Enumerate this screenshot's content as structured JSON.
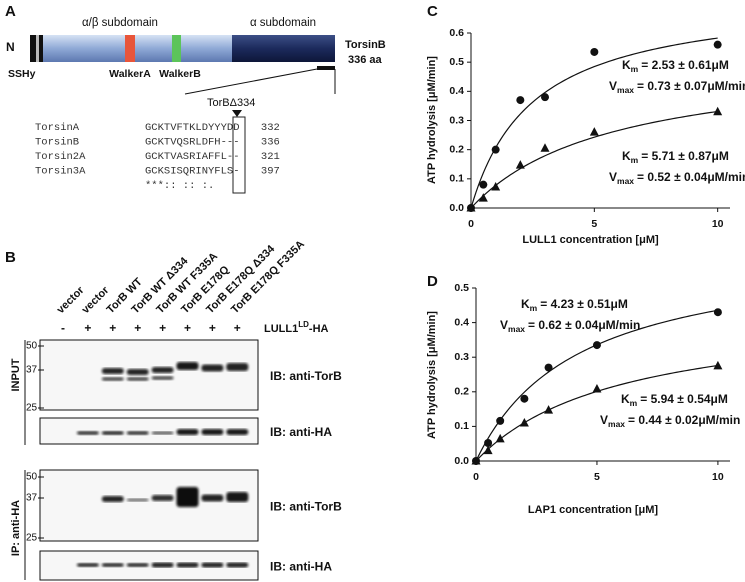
{
  "panel_a": {
    "label": "A",
    "n_label": "N",
    "ss_label": "SSHy",
    "alpha_beta": "α/β subdomain",
    "alpha": "α subdomain",
    "walker_a": "WalkerA",
    "walker_b": "WalkerB",
    "protein": "TorsinB",
    "length": "336 aa",
    "mutant": "TorBΔ334",
    "alignment": [
      {
        "name": "TorsinA",
        "sequence": "GCKTVFTKLDYYYDD",
        "end": 332
      },
      {
        "name": "TorsinB",
        "sequence": "GCKTVQSRLDFH---",
        "end": 336
      },
      {
        "name": "Torsin2A",
        "sequence": "GCKTVASRIAFFL--",
        "end": 321
      },
      {
        "name": "Torsin3A",
        "sequence": "GCKSISQRINYFLS-",
        "end": 397
      }
    ],
    "conservation": "***::  ::  :."
  },
  "panel_b": {
    "label": "B",
    "lanes": [
      "vector",
      "vector",
      "TorB WT",
      "TorB WT Δ334",
      "TorB WT F335A",
      "TorB E178Q",
      "TorB E178Q  Δ334",
      "TorB E178Q F335A"
    ],
    "signs": [
      "-",
      "+",
      "+",
      "+",
      "+",
      "+",
      "+",
      "+"
    ],
    "lull": {
      "text": "LULL1",
      "sup": "LD",
      "suffix": "-HA"
    },
    "input_label": "INPUT",
    "ip_label": "IP: anti-HA",
    "blots": [
      {
        "label": "IB: anti-TorB",
        "markers": [
          50,
          37,
          25
        ]
      },
      {
        "label": "IB: anti-HA"
      },
      {
        "label": "IB: anti-TorB",
        "markers": [
          50,
          37,
          25
        ]
      },
      {
        "label": "IB: anti-HA"
      }
    ]
  },
  "chart_data": [
    {
      "type": "scatter",
      "panel_label": "C",
      "xlabel": "LULL1 concentration [μM]",
      "ylabel": "ATP hydrolysis [μM/min]",
      "xlim": [
        0,
        10.5
      ],
      "ylim": [
        0,
        0.6
      ],
      "xticks": [
        0,
        5,
        10
      ],
      "yticks": [
        {
          "value": 0,
          "label": "0.0"
        },
        0.1,
        0.2,
        0.3,
        0.4,
        0.5,
        0.6
      ],
      "x": [
        0,
        0.5,
        1,
        2,
        3,
        5,
        10
      ],
      "series": [
        {
          "marker": "circle",
          "color": "#111111",
          "values": [
            0,
            0.08,
            0.2,
            0.37,
            0.38,
            0.535,
            0.56
          ],
          "fit": {
            "km": 2.53,
            "vmax": 0.73
          },
          "annotation": [
            {
              "symbol": "K",
              "sub": "m",
              "text": "= 2.53 ± 0.61μM"
            },
            {
              "symbol": "V",
              "sub": "max",
              "text": "= 0.73 ± 0.07μM/min"
            }
          ]
        },
        {
          "marker": "triangle",
          "color": "#111111",
          "values": [
            0,
            0.034,
            0.072,
            0.147,
            0.205,
            0.26,
            0.33
          ],
          "fit": {
            "km": 5.71,
            "vmax": 0.52
          },
          "annotation": [
            {
              "symbol": "K",
              "sub": "m",
              "text": "= 5.71 ± 0.87μM"
            },
            {
              "symbol": "V",
              "sub": "max",
              "text": "= 0.52 ± 0.04μM/min"
            }
          ]
        }
      ]
    },
    {
      "type": "scatter",
      "panel_label": "D",
      "xlabel": "LAP1 concentration [μM]",
      "ylabel": "ATP hydrolysis [μM/min]",
      "xlim": [
        0,
        10.5
      ],
      "ylim": [
        0,
        0.5
      ],
      "xticks": [
        0,
        5,
        10
      ],
      "yticks": [
        {
          "value": 0,
          "label": "0.0"
        },
        0.1,
        0.2,
        0.3,
        0.4,
        0.5
      ],
      "x": [
        0,
        0.5,
        1,
        2,
        3,
        5,
        10
      ],
      "series": [
        {
          "marker": "circle",
          "color": "#111111",
          "values": [
            0,
            0.052,
            0.116,
            0.18,
            0.27,
            0.335,
            0.43
          ],
          "fit": {
            "km": 4.23,
            "vmax": 0.62
          },
          "annotation": [
            {
              "symbol": "K",
              "sub": "m",
              "text": "= 4.23 ± 0.51μM"
            },
            {
              "symbol": "V",
              "sub": "max",
              "text": "= 0.62 ± 0.04μM/min"
            }
          ]
        },
        {
          "marker": "triangle",
          "color": "#111111",
          "values": [
            0,
            0.03,
            0.064,
            0.11,
            0.147,
            0.208,
            0.275
          ],
          "fit": {
            "km": 5.94,
            "vmax": 0.44
          },
          "annotation": [
            {
              "symbol": "K",
              "sub": "m",
              "text": "= 5.94 ± 0.54μM"
            },
            {
              "symbol": "V",
              "sub": "max",
              "text": "= 0.44 ± 0.02μM/min"
            }
          ]
        }
      ]
    }
  ]
}
